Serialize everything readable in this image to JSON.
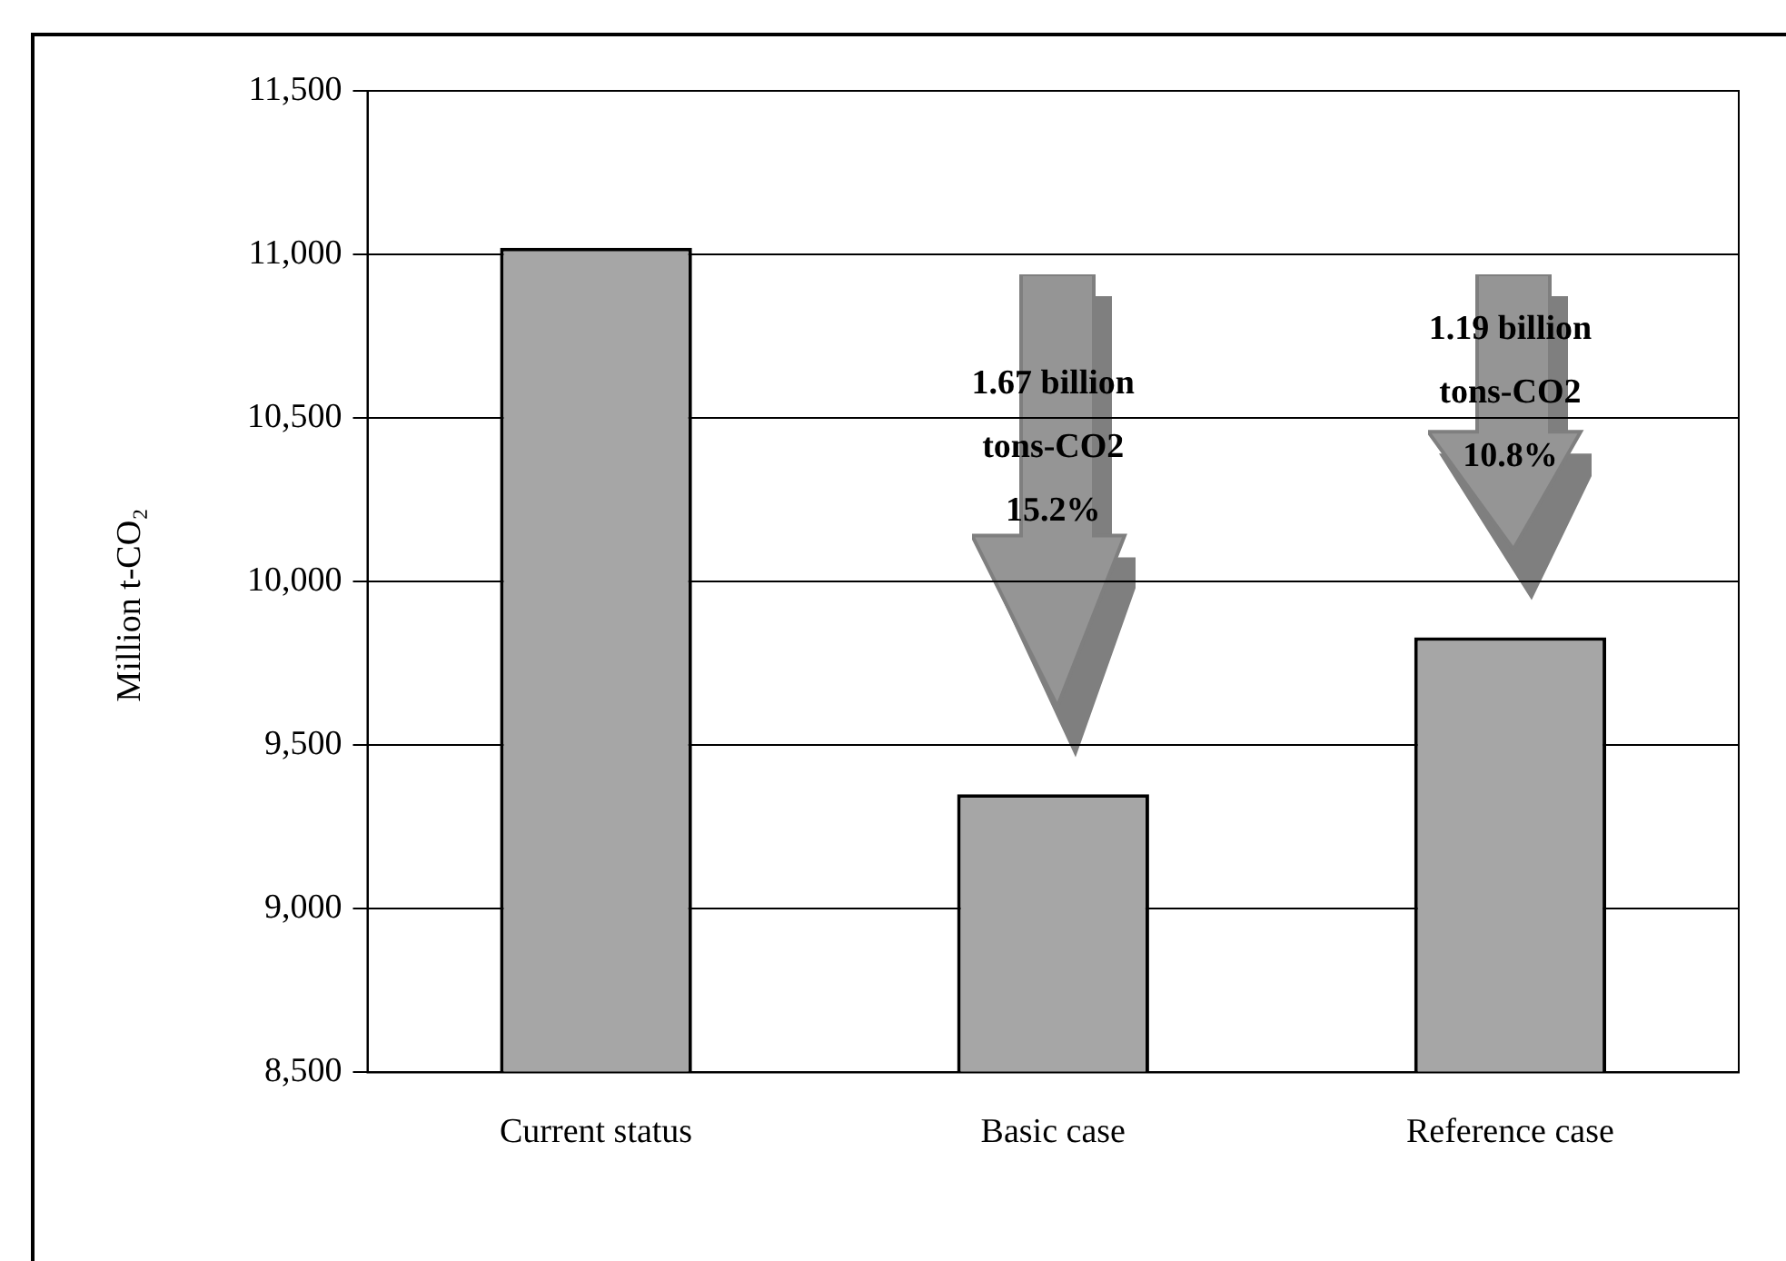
{
  "chart_data": {
    "type": "bar",
    "ylabel": "Million t-CO₂",
    "categories": [
      "Current status",
      "Basic case",
      "Reference case"
    ],
    "values": [
      11020,
      9350,
      9830
    ],
    "color": "#a6a6a6",
    "ylim": [
      8500,
      11500
    ],
    "yticks": [
      {
        "value": 8500,
        "label": "8,500"
      },
      {
        "value": 9000,
        "label": "9,000"
      },
      {
        "value": 9500,
        "label": "9,500"
      },
      {
        "value": 10000,
        "label": "10,000"
      },
      {
        "value": 10500,
        "label": "10,500"
      },
      {
        "value": 11000,
        "label": "11,000"
      },
      {
        "value": 11500,
        "label": "11,500"
      }
    ],
    "grid": "y",
    "legend": false,
    "annotations": [
      "1.67 billion\ntons-CO2\n15.2%",
      "1.19 billion\ntons-CO2\n10.8%"
    ]
  }
}
